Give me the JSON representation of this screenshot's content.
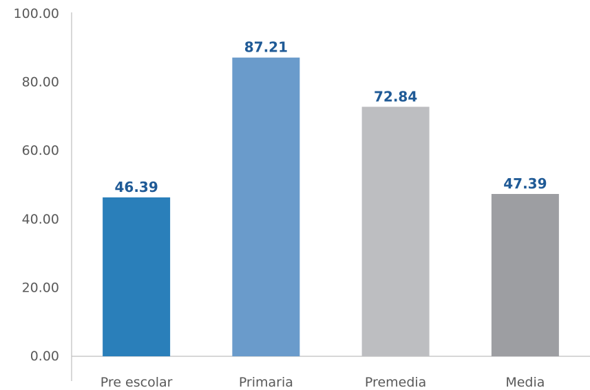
{
  "chart_data": {
    "type": "bar",
    "categories": [
      "Pre escolar",
      "Primaria",
      "Premedia",
      "Media"
    ],
    "values": [
      46.39,
      87.21,
      72.84,
      47.39
    ],
    "bar_colors": [
      "#2A7FBA",
      "#6A9BCB",
      "#BDBEC1",
      "#9D9EA2"
    ],
    "y_ticks": [
      "0.00",
      "20.00",
      "40.00",
      "60.00",
      "80.00",
      "100.00"
    ],
    "ylim": [
      0,
      100
    ],
    "title": "",
    "xlabel": "",
    "ylabel": "",
    "grid": false,
    "legend": "none",
    "data_label_color": "#1F5A96",
    "axis_color": "#BFBFBF"
  }
}
